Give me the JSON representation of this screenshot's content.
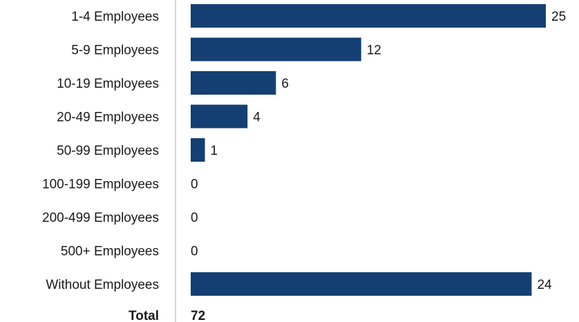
{
  "chart_data": {
    "type": "bar",
    "orientation": "horizontal",
    "categories": [
      "1-4 Employees",
      "5-9 Employees",
      "10-19 Employees",
      "20-49 Employees",
      "50-99 Employees",
      "100-199 Employees",
      "200-499 Employees",
      "500+ Employees",
      "Without Employees"
    ],
    "values": [
      25,
      12,
      6,
      4,
      1,
      0,
      0,
      0,
      24
    ],
    "total_label": "Total",
    "total_value": "72",
    "bar_color": "#143f72",
    "axis_color": "#c8d4e3",
    "xlim": [
      0,
      25
    ],
    "grid": false,
    "legend": "none"
  }
}
